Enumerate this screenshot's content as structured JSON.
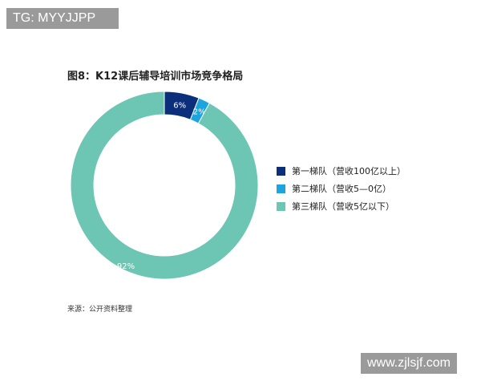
{
  "watermarks": {
    "top_left": "TG: MYYJJPP",
    "bottom_right": "www.zjlsjf.com"
  },
  "chart_data": {
    "type": "pie",
    "donut": true,
    "title": "图8：K12课后辅导培训市场竞争格局",
    "source": "来源：公开资料整理",
    "legend_position": "right",
    "slices": [
      {
        "name": "第一梯队（营收100亿以上）",
        "value": 6,
        "label": "6%",
        "color": "#0b2f7a"
      },
      {
        "name": "第二梯队（营收5—0亿）",
        "value": 2,
        "label": "2%",
        "color": "#1ba4de"
      },
      {
        "name": "第三梯队（营收5亿以下）",
        "value": 92,
        "label": "92%",
        "color": "#6dc5b4"
      }
    ]
  }
}
